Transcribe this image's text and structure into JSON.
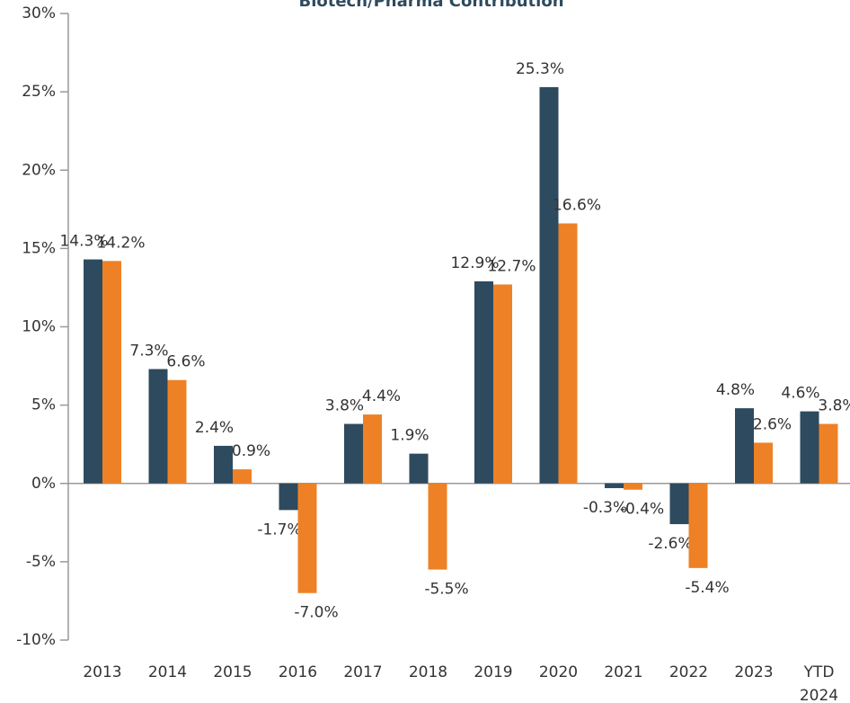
{
  "chart_data": {
    "type": "bar",
    "title": "Biotech/Pharma Contribution",
    "categories": [
      "2013",
      "2014",
      "2015",
      "2016",
      "2017",
      "2018",
      "2019",
      "2020",
      "2021",
      "2022",
      "2023",
      "YTD 2024"
    ],
    "series": [
      {
        "color": "#2e4a5e",
        "values": [
          14.3,
          7.3,
          2.4,
          -1.7,
          3.8,
          1.9,
          12.9,
          25.3,
          -0.3,
          -2.6,
          4.8,
          4.6
        ],
        "value_labels": [
          "14.3%",
          "7.3%",
          "2.4%",
          "-1.7%",
          "3.8%",
          "1.9%",
          "12.9%",
          "25.3%",
          "-0.3%",
          "-2.6%",
          "4.8%",
          "4.6%"
        ]
      },
      {
        "color": "#ee8125",
        "values": [
          14.2,
          6.6,
          0.9,
          -7.0,
          4.4,
          -5.5,
          12.7,
          16.6,
          -0.4,
          -5.4,
          2.6,
          3.8
        ],
        "value_labels": [
          "14.2%",
          "6.6%",
          "0.9%",
          "-7.0%",
          "4.4%",
          "-5.5%",
          "12.7%",
          "16.6%",
          "-0.4%",
          "-5.4%",
          "2.6%",
          "3.8%"
        ]
      }
    ],
    "ylim": [
      -10,
      30
    ],
    "yticks": [
      {
        "value": -10,
        "label": "-10%"
      },
      {
        "value": -5,
        "label": "-5%"
      },
      {
        "value": 0,
        "label": "0%"
      },
      {
        "value": 5,
        "label": "5%"
      },
      {
        "value": 10,
        "label": "10%"
      },
      {
        "value": 15,
        "label": "15%"
      },
      {
        "value": 20,
        "label": "20%"
      },
      {
        "value": 25,
        "label": "25%"
      },
      {
        "value": 30,
        "label": "30%"
      }
    ]
  }
}
